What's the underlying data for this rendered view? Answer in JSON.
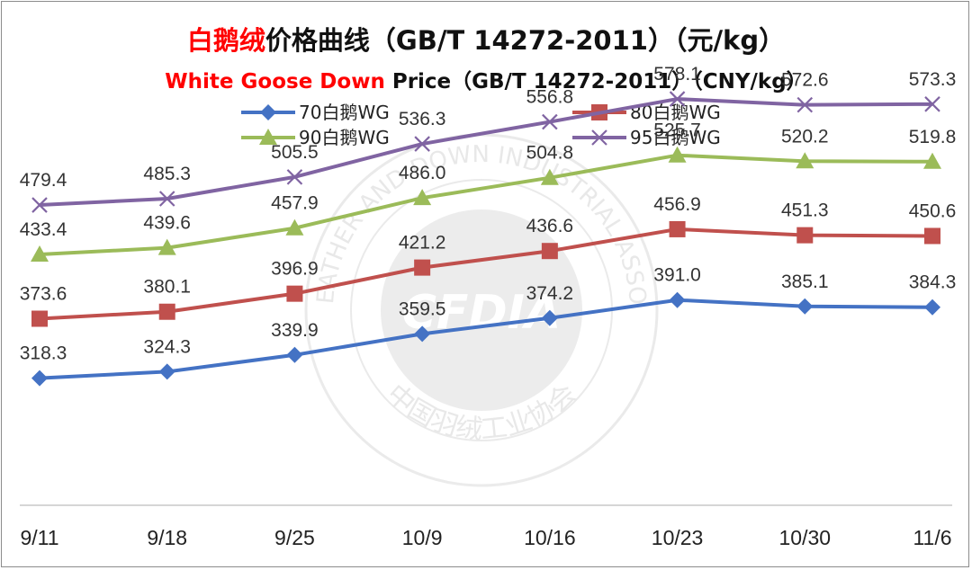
{
  "title": {
    "highlight": "白鹅绒",
    "rest": "价格曲线（GB/T 14272-2011）（元/kg）",
    "color": "#ff0000"
  },
  "subtitle": {
    "highlight": "White Goose Down",
    "rest": " Price（GB/T 14272-2011）（CNY/kg）",
    "color": "#ff0000"
  },
  "watermark": {
    "logo": "CFDIA",
    "ring_en": "CHINA FEATHER AND DOWN INDUSTRIAL ASSOCIATION",
    "ring_cn": "中国羽绒工业协会"
  },
  "chart_data": {
    "type": "line",
    "categories": [
      "9/11",
      "9/18",
      "9/25",
      "10/9",
      "10/16",
      "10/23",
      "10/30",
      "11/6"
    ],
    "ylim": [
      200,
      620
    ],
    "grid": false,
    "legend_position": "top",
    "series": [
      {
        "name": "70白鹅WG",
        "color": "#4472c4",
        "marker": "diamond",
        "values": [
          318.3,
          324.3,
          339.9,
          359.5,
          374.2,
          391.0,
          385.1,
          384.3
        ],
        "labels": [
          "318.3",
          "324.3",
          "339.9",
          "359.5",
          "374.2",
          "391.0",
          "385.1",
          "384.3"
        ]
      },
      {
        "name": "80白鹅WG",
        "color": "#c0504d",
        "marker": "square",
        "values": [
          373.6,
          380.1,
          396.9,
          421.2,
          436.6,
          456.9,
          451.3,
          450.6
        ],
        "labels": [
          "373.6",
          "380.1",
          "396.9",
          "421.2",
          "436.6",
          "456.9",
          "451.3",
          "450.6"
        ]
      },
      {
        "name": "90白鹅WG",
        "color": "#9bbb59",
        "marker": "triangle",
        "values": [
          433.4,
          439.6,
          457.9,
          486.0,
          504.8,
          525.7,
          520.2,
          519.8
        ],
        "labels": [
          "433.4",
          "439.6",
          "457.9",
          "486.0",
          "504.8",
          "525.7",
          "520.2",
          "519.8"
        ]
      },
      {
        "name": "95白鹅WG",
        "color": "#8064a2",
        "marker": "x",
        "values": [
          479.4,
          485.3,
          505.5,
          536.3,
          556.8,
          578.1,
          572.6,
          573.3
        ],
        "labels": [
          "479.4",
          "485.3",
          "505.5",
          "536.3",
          "556.8",
          "578.1",
          "572.6",
          "573.3"
        ]
      }
    ]
  }
}
